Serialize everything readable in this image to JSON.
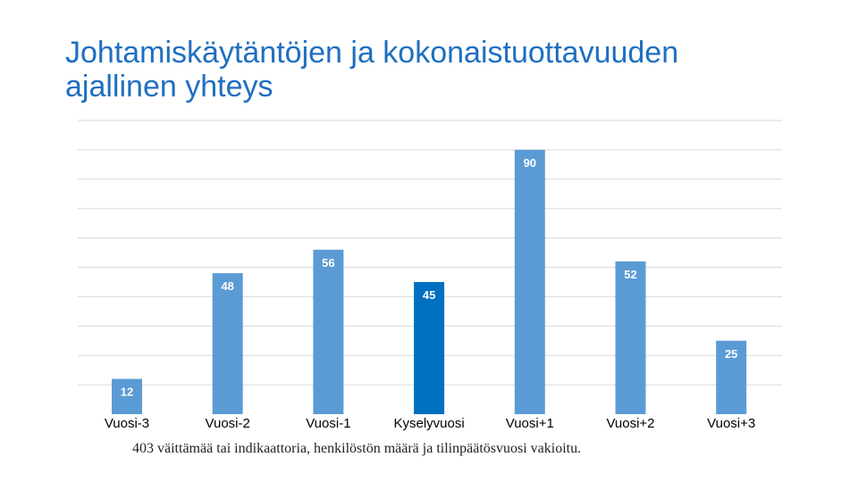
{
  "title": "Johtamiskäytäntöjen ja kokonaistuottavuuden ajallinen yhteys",
  "footnote": "403 väittämää tai indikaattoria, henkilöstön määrä ja tilinpäätösvuosi vakioitu.",
  "colors": {
    "bar": "#5b9bd5",
    "highlight_bar": "#0070c0",
    "grid": "#d9d9d9",
    "value_label": "#ffffff",
    "axis_label": "#000000"
  },
  "chart_data": {
    "type": "bar",
    "categories": [
      "Vuosi-3",
      "Vuosi-2",
      "Vuosi-1",
      "Kyselyvuosi",
      "Vuosi+1",
      "Vuosi+2",
      "Vuosi+3"
    ],
    "values": [
      12,
      48,
      56,
      45,
      90,
      52,
      25
    ],
    "highlight_category": "Kyselyvuosi",
    "data_labels": true,
    "ylim": [
      0,
      100
    ],
    "grid": true,
    "legend": "none",
    "xlabel": "",
    "ylabel": ""
  }
}
